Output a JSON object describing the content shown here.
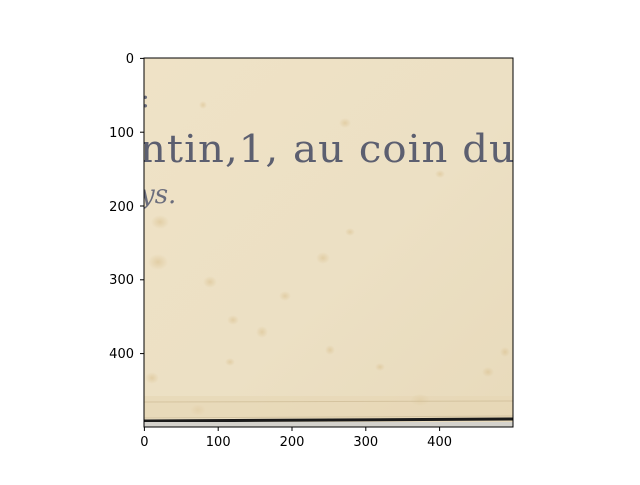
{
  "image": {
    "visible_text_line1": "ntin,1,   au coin du",
    "visible_text_line2": "ys.",
    "paper_color": "#ede0c3",
    "ink_color": "#5c5f70"
  },
  "axes": {
    "x_ticks": [
      "0",
      "100",
      "200",
      "300",
      "400"
    ],
    "y_ticks": [
      "0",
      "100",
      "200",
      "300",
      "400"
    ],
    "x_range": [
      0,
      500
    ],
    "y_range": [
      0,
      500
    ],
    "y_inverted": true
  }
}
